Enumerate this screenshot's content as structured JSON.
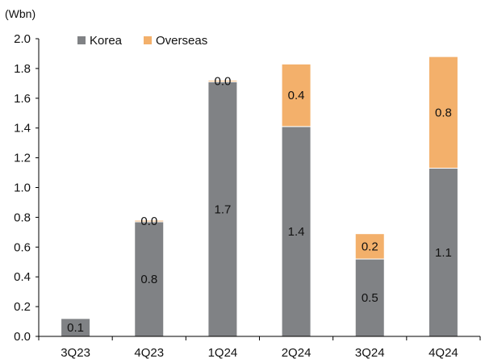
{
  "chart_data": {
    "type": "bar",
    "stacked": true,
    "unit_label": "(Wbn)",
    "categories": [
      "3Q23",
      "4Q23",
      "1Q24",
      "2Q24",
      "3Q24",
      "4Q24"
    ],
    "series": [
      {
        "name": "Korea",
        "color": "#808285",
        "values": [
          0.12,
          0.77,
          1.71,
          1.41,
          0.52,
          1.13
        ],
        "labels": [
          "0.1",
          "0.8",
          "1.7",
          "1.4",
          "0.5",
          "1.1"
        ]
      },
      {
        "name": "Overseas",
        "color": "#F3B06B",
        "values": [
          0.0,
          0.01,
          0.01,
          0.42,
          0.17,
          0.75
        ],
        "labels": [
          "",
          "0.0",
          "0.0",
          "0.4",
          "0.2",
          "0.8"
        ]
      }
    ],
    "ylim": [
      0,
      2.0
    ],
    "yticks": [
      "0.0",
      "0.2",
      "0.4",
      "0.6",
      "0.8",
      "1.0",
      "1.2",
      "1.4",
      "1.6",
      "1.8",
      "2.0"
    ],
    "legend_position": "top-left",
    "grid": false
  }
}
